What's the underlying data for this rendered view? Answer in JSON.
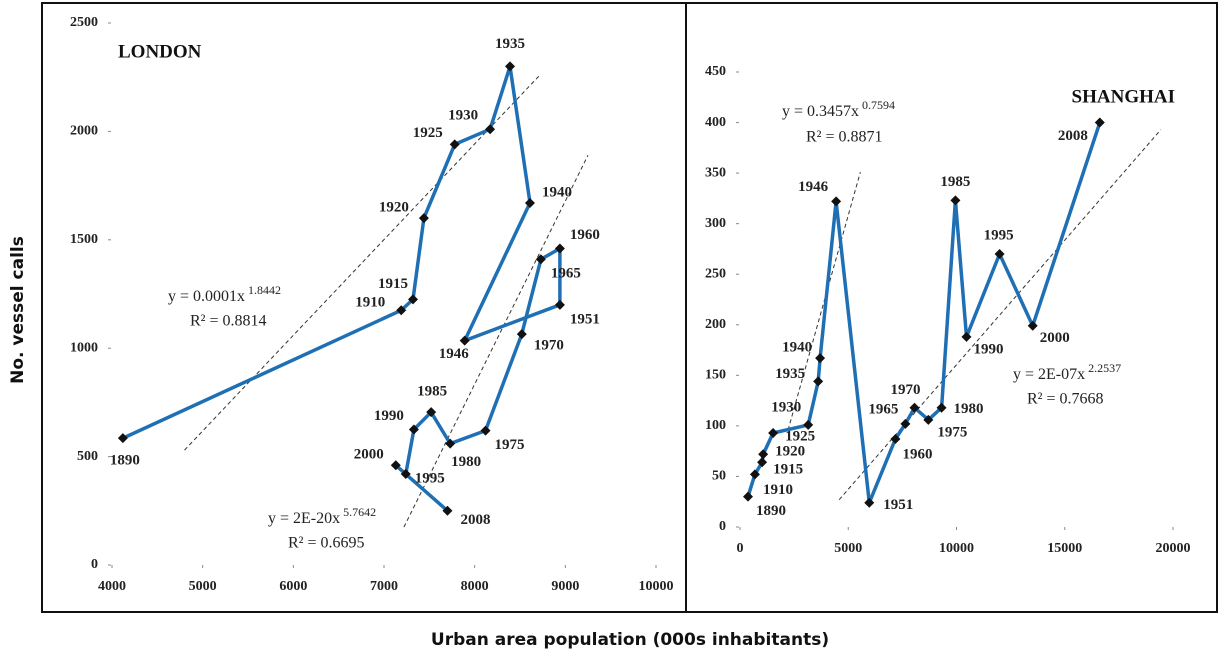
{
  "axis_titles": {
    "ylabel": "No. vessel calls",
    "xlabel": "Urban area population (000s inhabitants)"
  },
  "chart_data": [
    {
      "type": "line",
      "title": "LONDON",
      "color": "#1f6fb5",
      "labels": [
        "1890",
        "1910",
        "1915",
        "1920",
        "1925",
        "1930",
        "1935",
        "1940",
        "1946",
        "1951",
        "1960",
        "1965",
        "1970",
        "1975",
        "1980",
        "1985",
        "1990",
        "1995",
        "2000",
        "2008"
      ],
      "x": [
        4120,
        7190,
        7320,
        7440,
        7780,
        8170,
        8390,
        8610,
        7890,
        8940,
        8940,
        8730,
        8520,
        8120,
        7730,
        7520,
        7330,
        7240,
        7130,
        7700
      ],
      "values": [
        585,
        1175,
        1225,
        1600,
        1940,
        2010,
        2300,
        1670,
        1035,
        1200,
        1460,
        1410,
        1065,
        620,
        560,
        705,
        625,
        420,
        460,
        250
      ],
      "xlim": [
        4000,
        10000
      ],
      "xticks": [
        4000,
        5000,
        6000,
        7000,
        8000,
        9000,
        10000
      ],
      "ylim": [
        0,
        2500
      ],
      "yticks": [
        0,
        500,
        1000,
        1500,
        2000,
        2500
      ],
      "trendlines": [
        {
          "x": [
            4800,
            8720
          ],
          "y": [
            530,
            2260
          ],
          "equation": "y = 0.0001x",
          "exponent": "1.8442",
          "r2": "R² = 0.8814"
        },
        {
          "x": [
            7220,
            9250
          ],
          "y": [
            175,
            1890
          ],
          "equation": "y = 2E-20x",
          "exponent": "5.7642",
          "r2": "R² = 0.6695"
        }
      ]
    },
    {
      "type": "line",
      "title": "SHANGHAI",
      "color": "#1f6fb5",
      "labels": [
        "1890",
        "1910",
        "1915",
        "1920",
        "1925",
        "1930",
        "1935",
        "1940",
        "1946",
        "1951",
        "1960",
        "1965",
        "1970",
        "1975",
        "1980",
        "1985",
        "1990",
        "1995",
        "2000",
        "2008"
      ],
      "x": [
        370,
        690,
        1020,
        1070,
        1530,
        3150,
        3610,
        3700,
        4440,
        5970,
        7180,
        7640,
        8060,
        8700,
        9310,
        9950,
        10460,
        11990,
        13520,
        16620
      ],
      "values": [
        30,
        52,
        64,
        72,
        93,
        101,
        144,
        167,
        322,
        24,
        87,
        102,
        118,
        106,
        118,
        323,
        188,
        270,
        199,
        400
      ],
      "xlim": [
        0,
        20000
      ],
      "xticks": [
        0,
        5000,
        10000,
        15000,
        20000
      ],
      "ylim": [
        0,
        450
      ],
      "yticks": [
        0,
        50,
        100,
        150,
        200,
        250,
        300,
        350,
        400,
        450
      ],
      "trendlines": [
        {
          "x": [
            2220,
            5560
          ],
          "y": [
            96,
            351
          ],
          "equation": "y = 0.3457x",
          "exponent": "0.7594",
          "r2": "R² = 0.8871"
        },
        {
          "x": [
            4580,
            19440
          ],
          "y": [
            27,
            393
          ],
          "equation": "y = 2E-07x",
          "exponent": "2.2537",
          "r2": "R² = 0.7668"
        }
      ]
    }
  ]
}
